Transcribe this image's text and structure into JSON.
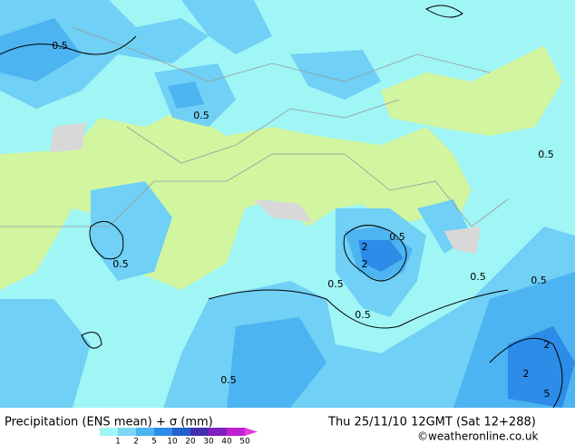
{
  "footer": {
    "title": "Precipitation (ENS mean) + σ (mm)",
    "date": "Thu 25/11/10 12GMT (Sat 12+288)",
    "credit": "©weatheronline.co.uk"
  },
  "legend": {
    "ticks": [
      1,
      2,
      5,
      10,
      20,
      30,
      40,
      50
    ],
    "colors": [
      "#a0f5f5",
      "#7ad8f5",
      "#4cb4f0",
      "#2c8ce8",
      "#2060d0",
      "#4030b0",
      "#8020c0",
      "#c020d0",
      "#e040e0"
    ]
  },
  "map": {
    "contour_labels": [
      "0.5",
      "0.5",
      "0.5",
      "0.5",
      "2",
      "2",
      "0.5",
      "0.5",
      "0.5",
      "0.5",
      "0.5",
      "2",
      "2",
      "5",
      "0.5"
    ]
  }
}
